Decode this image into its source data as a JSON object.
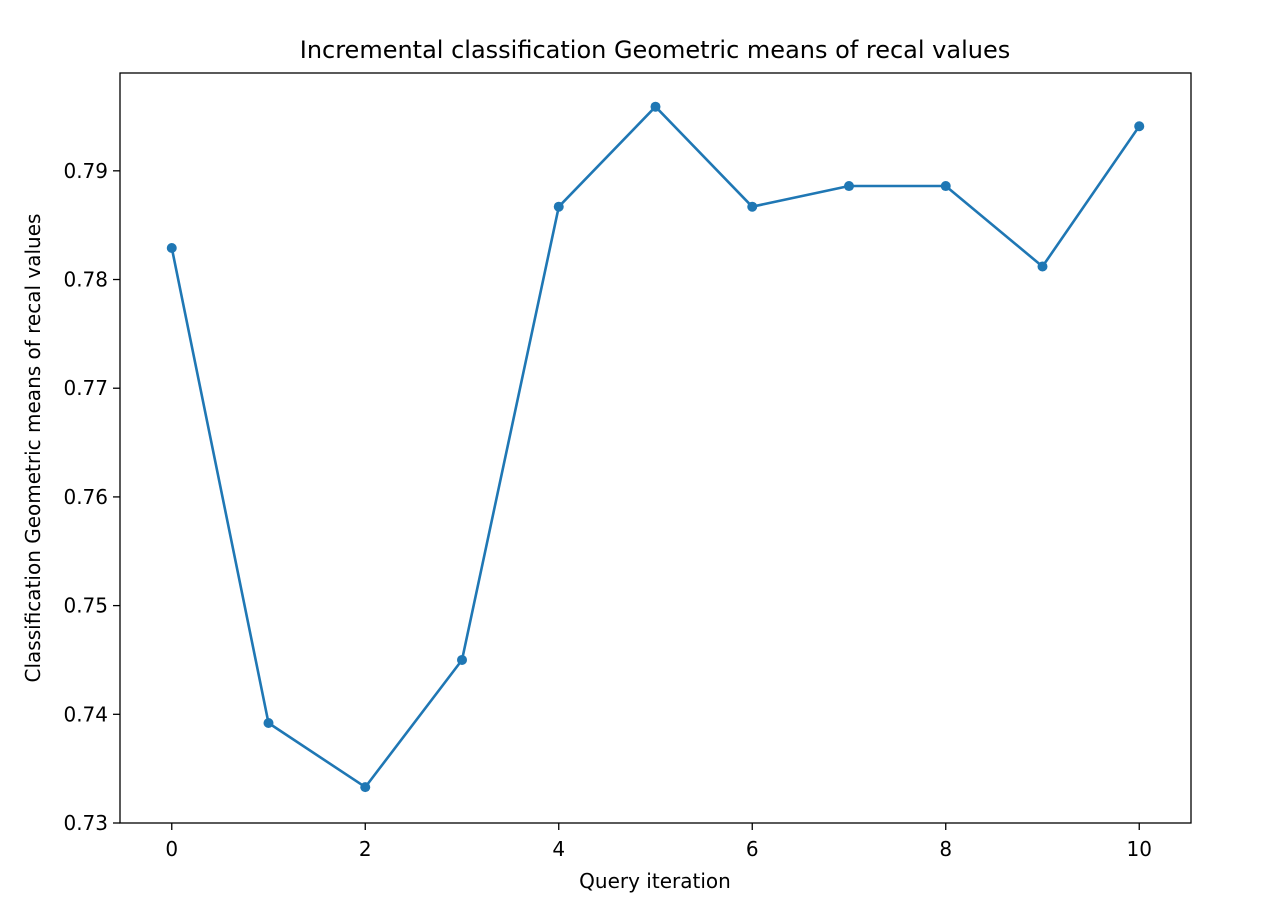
{
  "chart_data": {
    "type": "line",
    "title": "Incremental classification Geometric means of recal values",
    "xlabel": "Query iteration",
    "ylabel": "Classification Geometric means of recal values",
    "x": [
      0,
      1,
      2,
      3,
      4,
      5,
      6,
      7,
      8,
      9,
      10
    ],
    "series": [
      {
        "values": [
          0.7829,
          0.7392,
          0.7333,
          0.745,
          0.7867,
          0.7959,
          0.7867,
          0.7886,
          0.7886,
          0.7812,
          0.7941
        ],
        "color": "#1f77b4",
        "marker": "circle"
      }
    ],
    "xlim": [
      -0.535,
      10.535
    ],
    "ylim": [
      0.73,
      0.799
    ],
    "xticks": [
      0,
      2,
      4,
      6,
      8,
      10
    ],
    "xtick_labels": [
      "0",
      "2",
      "4",
      "6",
      "8",
      "10"
    ],
    "yticks": [
      0.73,
      0.74,
      0.75,
      0.76,
      0.77,
      0.78,
      0.79
    ],
    "ytick_labels": [
      "0.73",
      "0.74",
      "0.75",
      "0.76",
      "0.77",
      "0.78",
      "0.79"
    ],
    "grid": false,
    "legend": false
  }
}
